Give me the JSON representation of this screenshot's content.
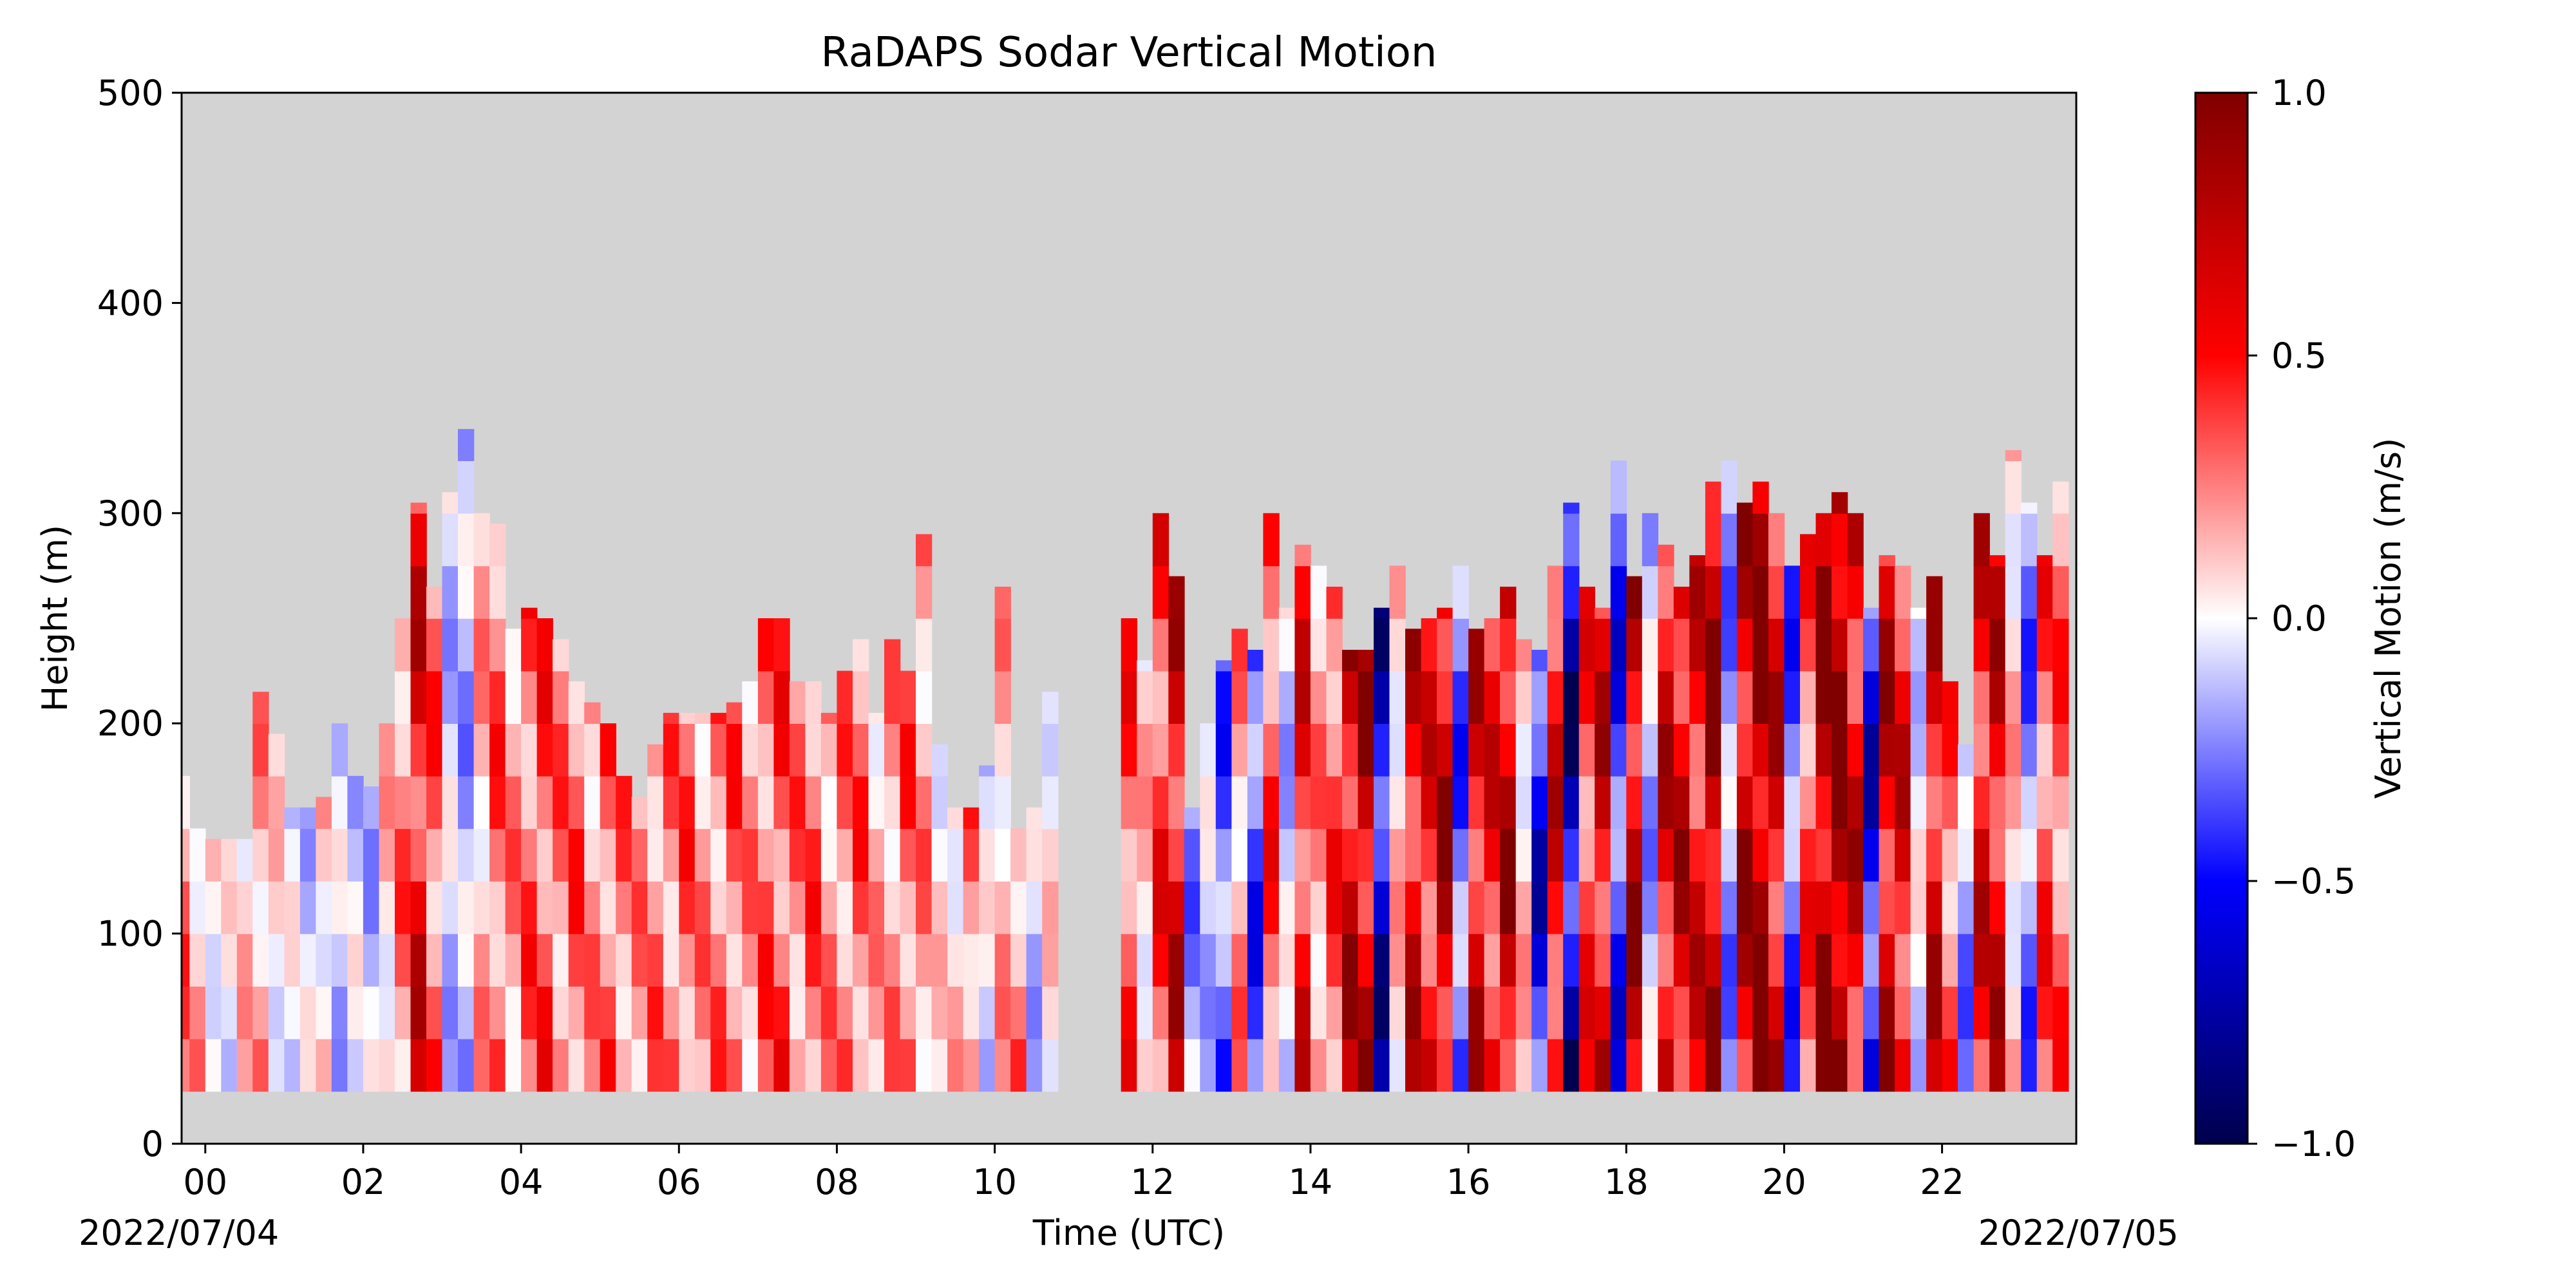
{
  "chart_data": {
    "type": "heatmap",
    "title": "RaDAPS Sodar Vertical Motion",
    "xlabel": "Time (UTC)",
    "ylabel": "Height (m)",
    "date_start_label": "2022/07/04",
    "date_end_label": "2022/07/05",
    "x_unit": "hours UTC since 2022/07/04 00:00",
    "xlim": [
      -0.3,
      23.7
    ],
    "ylim": [
      0,
      500
    ],
    "x_ticks": [
      0,
      2,
      4,
      6,
      8,
      10,
      12,
      14,
      16,
      18,
      20,
      22
    ],
    "x_tick_labels": [
      "00",
      "02",
      "04",
      "06",
      "08",
      "10",
      "12",
      "14",
      "16",
      "18",
      "20",
      "22"
    ],
    "y_ticks": [
      0,
      100,
      200,
      300,
      400,
      500
    ],
    "y_tick_labels": [
      "0",
      "100",
      "200",
      "300",
      "400",
      "500"
    ],
    "background_color": "#d3d3d3",
    "data_min_height": 25,
    "colorbar": {
      "label": "Vertical Motion (m/s)",
      "range": [
        -1.0,
        1.0
      ],
      "ticks": [
        -1.0,
        -0.5,
        0.0,
        0.5,
        1.0
      ],
      "tick_labels": [
        "−1.0",
        "−0.5",
        "0.0",
        "0.5",
        "1.0"
      ],
      "colormap": "seismic",
      "colors": {
        "low": "#00004c",
        "mid_low": "#0000ff",
        "zero": "#ffffff",
        "mid_high": "#ff0000",
        "high": "#800000"
      }
    },
    "time_hours": [
      -0.3,
      -0.1,
      0.1,
      0.3,
      0.5,
      0.7,
      0.9,
      1.1,
      1.3,
      1.5,
      1.7,
      1.9,
      2.1,
      2.3,
      2.5,
      2.7,
      2.9,
      3.1,
      3.3,
      3.5,
      3.7,
      3.9,
      4.1,
      4.3,
      4.5,
      4.7,
      4.9,
      5.1,
      5.3,
      5.5,
      5.7,
      5.9,
      6.1,
      6.3,
      6.5,
      6.7,
      6.9,
      7.1,
      7.3,
      7.5,
      7.7,
      7.9,
      8.1,
      8.3,
      8.5,
      8.7,
      8.9,
      9.1,
      9.3,
      9.5,
      9.7,
      9.9,
      10.1,
      10.3,
      10.5,
      10.7,
      10.9,
      11.1,
      11.3,
      11.5,
      11.7,
      11.9,
      12.1,
      12.3,
      12.5,
      12.7,
      12.9,
      13.1,
      13.3,
      13.5,
      13.7,
      13.9,
      14.1,
      14.3,
      14.5,
      14.7,
      14.9,
      15.1,
      15.3,
      15.5,
      15.7,
      15.9,
      16.1,
      16.3,
      16.5,
      16.7,
      16.9,
      17.1,
      17.3,
      17.5,
      17.7,
      17.9,
      18.1,
      18.3,
      18.5,
      18.7,
      18.9,
      19.1,
      19.3,
      19.5,
      19.7,
      19.9,
      20.1,
      20.3,
      20.5,
      20.7,
      20.9,
      21.1,
      21.3,
      21.5,
      21.7,
      21.9,
      22.1,
      22.3,
      22.5,
      22.7,
      22.9,
      23.1,
      23.3,
      23.5
    ],
    "column_top_m": [
      175,
      150,
      145,
      145,
      145,
      215,
      195,
      160,
      160,
      165,
      200,
      175,
      170,
      200,
      250,
      305,
      265,
      310,
      340,
      300,
      295,
      245,
      255,
      250,
      240,
      220,
      210,
      200,
      175,
      165,
      190,
      205,
      205,
      205,
      205,
      210,
      220,
      250,
      250,
      220,
      220,
      205,
      225,
      240,
      205,
      240,
      225,
      290,
      190,
      160,
      160,
      180,
      265,
      150,
      160,
      215,
      0,
      0,
      0,
      0,
      250,
      230,
      300,
      270,
      160,
      200,
      230,
      245,
      235,
      300,
      255,
      285,
      275,
      265,
      235,
      235,
      255,
      275,
      245,
      250,
      255,
      275,
      245,
      250,
      265,
      240,
      235,
      275,
      305,
      265,
      255,
      325,
      270,
      300,
      285,
      265,
      280,
      315,
      325,
      305,
      315,
      300,
      275,
      290,
      300,
      310,
      300,
      255,
      280,
      275,
      255,
      270,
      220,
      190,
      300,
      280,
      330,
      305,
      280,
      315
    ],
    "column_mean_ms": [
      0.25,
      0.15,
      0.05,
      -0.02,
      0.1,
      0.18,
      0.05,
      -0.05,
      -0.08,
      0.1,
      -0.1,
      -0.08,
      -0.12,
      0.1,
      0.25,
      0.55,
      0.3,
      -0.1,
      -0.15,
      0.15,
      0.3,
      0.2,
      0.3,
      0.35,
      0.25,
      0.3,
      0.2,
      0.3,
      0.25,
      0.2,
      0.25,
      0.25,
      0.3,
      0.2,
      0.25,
      0.3,
      0.2,
      0.3,
      0.35,
      0.25,
      0.3,
      0.2,
      0.25,
      0.3,
      0.15,
      0.2,
      0.3,
      0.2,
      0.05,
      0.1,
      0.25,
      -0.05,
      0.15,
      0.25,
      -0.1,
      0.05,
      0.0,
      0.0,
      0.0,
      0.0,
      0.35,
      0.1,
      0.4,
      0.6,
      -0.2,
      -0.1,
      -0.3,
      0.2,
      -0.35,
      0.35,
      -0.1,
      0.5,
      0.2,
      0.35,
      0.65,
      0.7,
      -0.6,
      0.1,
      0.6,
      0.5,
      0.7,
      -0.3,
      0.6,
      0.5,
      0.7,
      0.1,
      -0.5,
      0.55,
      -0.65,
      0.4,
      0.6,
      -0.4,
      0.7,
      -0.15,
      0.6,
      0.65,
      0.55,
      0.8,
      -0.2,
      0.7,
      0.85,
      0.6,
      -0.3,
      0.35,
      0.8,
      0.9,
      0.6,
      -0.5,
      0.65,
      0.55,
      -0.05,
      0.6,
      0.3,
      -0.2,
      0.55,
      0.6,
      0.1,
      -0.25,
      0.35,
      0.3
    ]
  }
}
